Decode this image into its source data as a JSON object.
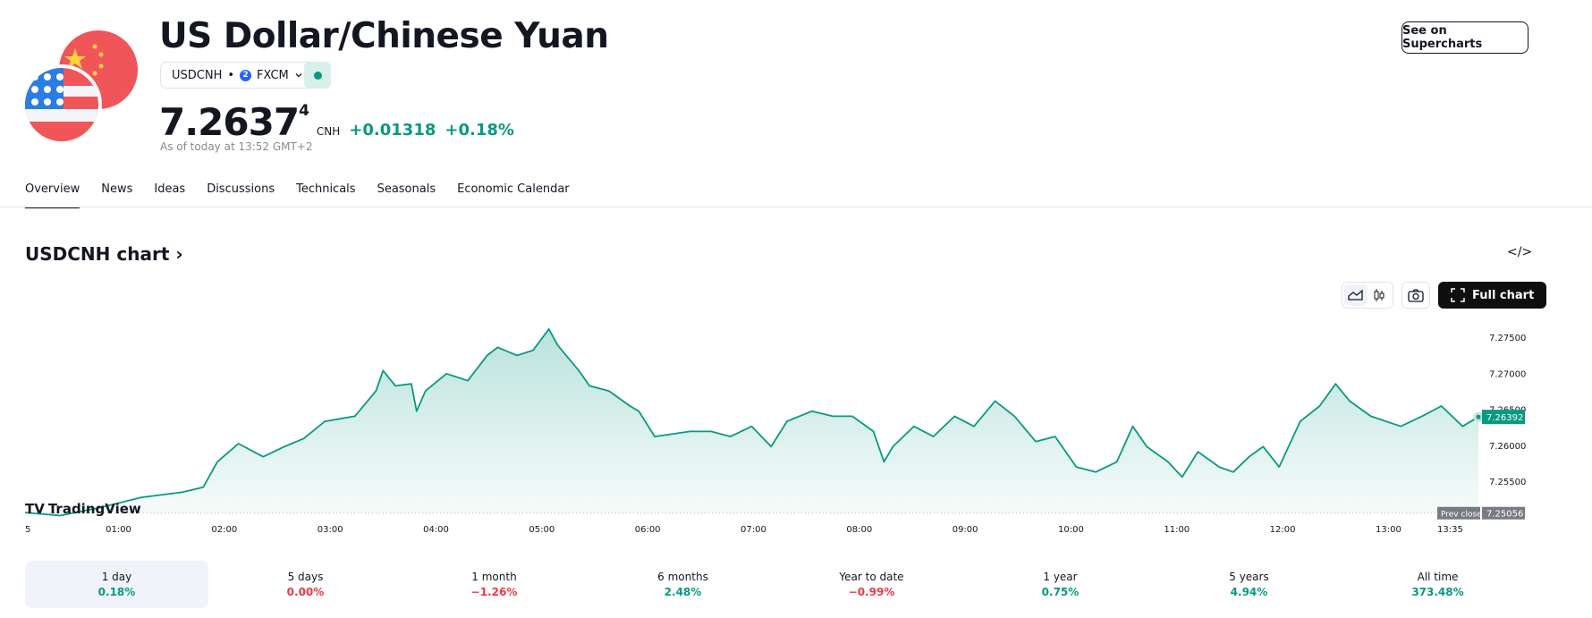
{
  "header": {
    "title": "US Dollar/Chinese Yuan",
    "symbol": "USDCNH",
    "dot": "•",
    "exchange": "FXCM",
    "exchange_logo": "2",
    "price_main": "7.2637",
    "price_sup": "4",
    "currency": "CNH",
    "change": "+0.01318",
    "change_pct": "+0.18%",
    "as_of": "As of today at 13:52 GMT+2",
    "see_button": "See on Supercharts"
  },
  "tabs": [
    "Overview",
    "News",
    "Ideas",
    "Discussions",
    "Technicals",
    "Seasonals",
    "Economic Calendar"
  ],
  "chart_section": {
    "title": "USDCNH chart",
    "chevron": "›",
    "embed_icon": "</>",
    "full_chart": "Full chart",
    "logo_text": "TradingView"
  },
  "colors": {
    "accent": "#089981",
    "down": "#f23645"
  },
  "chart_data": {
    "type": "area",
    "x_unit": "minutes since 00:00",
    "x": [
      7,
      27,
      50,
      73,
      96,
      108,
      116,
      128,
      142,
      154,
      165,
      177,
      194,
      206,
      210,
      217,
      226,
      229,
      234,
      246,
      258,
      269,
      275,
      286,
      295,
      304,
      309,
      321,
      327,
      338,
      350,
      355,
      364,
      384,
      396,
      407,
      419,
      430,
      439,
      453,
      465,
      476,
      488,
      494,
      499,
      511,
      522,
      534,
      545,
      557,
      568,
      580,
      591,
      603,
      614,
      626,
      635,
      643,
      655,
      663,
      672,
      684,
      692,
      701,
      709,
      718,
      730,
      741,
      750,
      758,
      770,
      787,
      799,
      810,
      822,
      831
    ],
    "y": [
      7.25064,
      7.25022,
      7.25135,
      7.25275,
      7.25346,
      7.25416,
      7.25768,
      7.26022,
      7.25839,
      7.25979,
      7.26092,
      7.26331,
      7.26402,
      7.26754,
      7.27035,
      7.26824,
      7.26852,
      7.26472,
      7.26754,
      7.26993,
      7.26895,
      7.27247,
      7.27359,
      7.27247,
      7.27317,
      7.27613,
      7.27387,
      7.27035,
      7.26824,
      7.26754,
      7.26543,
      7.26472,
      7.2612,
      7.26191,
      7.26191,
      7.2612,
      7.26261,
      7.25979,
      7.26331,
      7.26472,
      7.26402,
      7.26402,
      7.26191,
      7.25768,
      7.25979,
      7.26261,
      7.2612,
      7.26402,
      7.26261,
      7.26613,
      7.26402,
      7.2605,
      7.2612,
      7.25698,
      7.25627,
      7.25768,
      7.26261,
      7.25979,
      7.25768,
      7.25557,
      7.25909,
      7.25698,
      7.25627,
      7.25839,
      7.25979,
      7.25698,
      7.26331,
      7.26543,
      7.26852,
      7.26613,
      7.26402,
      7.26261,
      7.26402,
      7.26543,
      7.26261,
      7.26392
    ],
    "ylim": [
      7.2495,
      7.2775
    ],
    "y_ticks": [
      "7.27500",
      "7.27000",
      "7.26500",
      "7.26000",
      "7.25500"
    ],
    "y_tick_values": [
      7.275,
      7.27,
      7.265,
      7.26,
      7.255
    ],
    "x_ticks": [
      "5",
      "01:00",
      "02:00",
      "03:00",
      "04:00",
      "05:00",
      "06:00",
      "07:00",
      "08:00",
      "09:00",
      "10:00",
      "11:00",
      "12:00",
      "13:00",
      "13:35"
    ],
    "x_tick_values": [
      0,
      60,
      120,
      180,
      240,
      300,
      360,
      420,
      480,
      540,
      600,
      660,
      720,
      780,
      815
    ],
    "last_label": "7.26392",
    "prev_close_label": "Prev close",
    "prev_close": 7.25056,
    "prev_close_text": "7.25056"
  },
  "periods": [
    {
      "label": "1 day",
      "value": "0.18%",
      "dir": "up"
    },
    {
      "label": "5 days",
      "value": "0.00%",
      "dir": "fl"
    },
    {
      "label": "1 month",
      "value": "−1.26%",
      "dir": "dn"
    },
    {
      "label": "6 months",
      "value": "2.48%",
      "dir": "up"
    },
    {
      "label": "Year to date",
      "value": "−0.99%",
      "dir": "dn"
    },
    {
      "label": "1 year",
      "value": "0.75%",
      "dir": "up"
    },
    {
      "label": "5 years",
      "value": "4.94%",
      "dir": "up"
    },
    {
      "label": "All time",
      "value": "373.48%",
      "dir": "up"
    }
  ]
}
